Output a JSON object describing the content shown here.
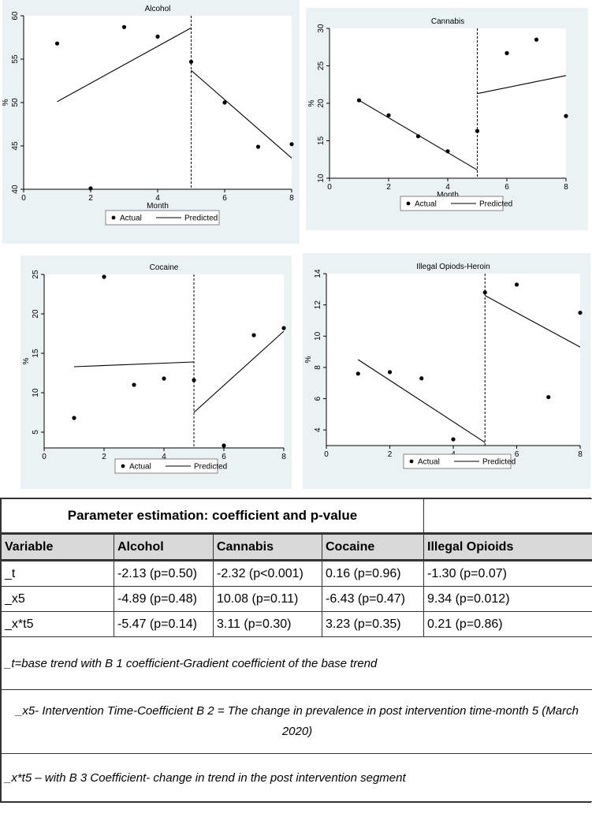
{
  "chart_data": [
    {
      "type": "scatter",
      "title": "Alcohol",
      "xlabel": "Month",
      "ylabel": "%",
      "xlim": [
        0,
        8
      ],
      "ylim": [
        40,
        60
      ],
      "xticks": [
        0,
        2,
        4,
        6,
        8
      ],
      "yticks": [
        40,
        45,
        50,
        55,
        60
      ],
      "intervention_x": 5,
      "actual": [
        [
          1,
          56.8
        ],
        [
          2,
          40.1
        ],
        [
          3,
          58.7
        ],
        [
          4,
          57.6
        ],
        [
          5,
          54.7
        ],
        [
          6,
          50.0
        ],
        [
          7,
          44.9
        ],
        [
          8,
          45.2
        ]
      ],
      "predicted": [
        [
          [
            1,
            50.1
          ],
          [
            5,
            58.6
          ]
        ],
        [
          [
            5,
            53.7
          ],
          [
            8,
            43.6
          ]
        ]
      ],
      "legend": [
        "Actual",
        "Predicted"
      ]
    },
    {
      "type": "scatter",
      "title": "Cannabis",
      "xlabel": "Month",
      "ylabel": "%",
      "xlim": [
        0,
        8
      ],
      "ylim": [
        10,
        30
      ],
      "xticks": [
        0,
        2,
        4,
        6,
        8
      ],
      "yticks": [
        10,
        15,
        20,
        25,
        30
      ],
      "intervention_x": 5,
      "actual": [
        [
          1,
          20.4
        ],
        [
          2,
          18.4
        ],
        [
          3,
          15.6
        ],
        [
          4,
          13.6
        ],
        [
          5,
          16.3
        ],
        [
          6,
          26.7
        ],
        [
          7,
          28.5
        ],
        [
          8,
          18.3
        ]
      ],
      "predicted": [
        [
          [
            1,
            20.4
          ],
          [
            5,
            11.1
          ]
        ],
        [
          [
            5,
            21.3
          ],
          [
            8,
            23.7
          ]
        ]
      ],
      "legend": [
        "Actual",
        "Predicted"
      ]
    },
    {
      "type": "scatter",
      "title": "Cocaine",
      "xlabel": "Month",
      "ylabel": "%",
      "xlim": [
        0,
        8
      ],
      "ylim": [
        3,
        25
      ],
      "xticks": [
        0,
        2,
        4,
        6,
        8
      ],
      "yticks": [
        5,
        10,
        15,
        20,
        25
      ],
      "intervention_x": 5,
      "actual": [
        [
          1,
          6.8
        ],
        [
          2,
          24.7
        ],
        [
          3,
          11.0
        ],
        [
          4,
          11.8
        ],
        [
          5,
          11.6
        ],
        [
          6,
          3.3
        ],
        [
          7,
          17.3
        ],
        [
          8,
          18.2
        ]
      ],
      "predicted": [
        [
          [
            1,
            13.3
          ],
          [
            5,
            13.9
          ]
        ],
        [
          [
            5,
            7.5
          ],
          [
            8,
            17.8
          ]
        ]
      ],
      "legend": [
        "Actual",
        "Predicted"
      ]
    },
    {
      "type": "scatter",
      "title": "Illegal Opiods-Heroin",
      "xlabel": "Month",
      "ylabel": "%",
      "xlim": [
        0,
        8
      ],
      "ylim": [
        3,
        14
      ],
      "xticks": [
        0,
        2,
        4,
        6,
        8
      ],
      "yticks": [
        4,
        6,
        8,
        10,
        12,
        14
      ],
      "intervention_x": 5,
      "actual": [
        [
          1,
          7.6
        ],
        [
          2,
          7.7
        ],
        [
          3,
          7.3
        ],
        [
          4,
          3.4
        ],
        [
          5,
          12.8
        ],
        [
          6,
          13.3
        ],
        [
          7,
          6.1
        ],
        [
          8,
          11.5
        ]
      ],
      "predicted": [
        [
          [
            1,
            8.5
          ],
          [
            5,
            3.2
          ]
        ],
        [
          [
            5,
            12.6
          ],
          [
            8,
            9.3
          ]
        ]
      ],
      "legend": [
        "Actual",
        "Predicted"
      ]
    }
  ],
  "table": {
    "title": "Parameter estimation: coefficient and p-value",
    "headers": [
      "Variable",
      "Alcohol",
      "Cannabis",
      "Cocaine",
      "Illegal Opioids"
    ],
    "rows": [
      [
        "_t",
        "-2.13 (p=0.50)",
        "-2.32 (p<0.001)",
        "0.16 (p=0.96)",
        "-1.30 (p=0.07)"
      ],
      [
        "_x5",
        "-4.89 (p=0.48)",
        "10.08 (p=0.11)",
        "-6.43 (p=0.47)",
        "9.34 (p=0.012)"
      ],
      [
        "_x*t5",
        "-5.47 (p=0.14)",
        "3.11 (p=0.30)",
        "3.23 (p=0.35)",
        "0.21 (p=0.86)"
      ]
    ],
    "notes": [
      "_t=base trend with B 1 coefficient-Gradient coefficient of the base trend",
      "_x5- Intervention Time-Coefficient B 2 = The change in prevalence in post intervention time-month 5 (March 2020)",
      "_x*t5 – with B 3 Coefficient- change in trend in the post intervention segment"
    ]
  }
}
